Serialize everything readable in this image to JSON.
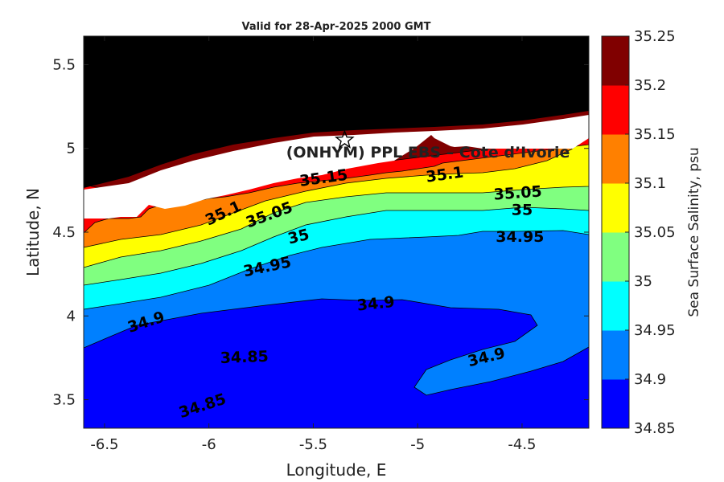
{
  "chart_data": {
    "type": "contour",
    "title": "Valid for 28-Apr-2025 2000 GMT",
    "xlabel": "Longitude, E",
    "ylabel": "Latitude, N",
    "colorbar_label": "Sea Surface Salinity, psu",
    "xlim": [
      -6.6,
      -4.18
    ],
    "ylim": [
      3.33,
      5.67
    ],
    "x_ticks": [
      -6.5,
      -6,
      -5.5,
      -5,
      -4.5
    ],
    "x_tick_labels": [
      "-6.5",
      "-6",
      "-5.5",
      "-5",
      "-4.5"
    ],
    "y_ticks": [
      3.5,
      4,
      4.5,
      5,
      5.5
    ],
    "y_tick_labels": [
      "3.5",
      "4",
      "4.5",
      "5",
      "5.5"
    ],
    "colorbar_levels": [
      34.85,
      34.9,
      34.95,
      35,
      35.05,
      35.1,
      35.15,
      35.2,
      35.25
    ],
    "colorbar_tick_labels": [
      "34.85",
      "34.9",
      "34.95",
      "35",
      "35.05",
      "35.1",
      "35.15",
      "35.2",
      "35.25"
    ],
    "colorbar_colors": [
      "#0000ff",
      "#0080ff",
      "#00ffff",
      "#80ff80",
      "#ffff00",
      "#ff8000",
      "#ff0000",
      "#800000"
    ],
    "land_color": "#000000",
    "contour_labels": [
      {
        "text": "35.15",
        "lon": -5.45,
        "lat": 4.82,
        "rot": -8
      },
      {
        "text": "35.1",
        "lon": -4.87,
        "lat": 4.84,
        "rot": -8
      },
      {
        "text": "35.05",
        "lon": -4.52,
        "lat": 4.73,
        "rot": -4
      },
      {
        "text": "35",
        "lon": -4.5,
        "lat": 4.63,
        "rot": 0
      },
      {
        "text": "35.1",
        "lon": -5.93,
        "lat": 4.61,
        "rot": -25
      },
      {
        "text": "35.05",
        "lon": -5.71,
        "lat": 4.6,
        "rot": -20
      },
      {
        "text": "35",
        "lon": -5.57,
        "lat": 4.47,
        "rot": -14
      },
      {
        "text": "34.95",
        "lon": -4.51,
        "lat": 4.47,
        "rot": 0
      },
      {
        "text": "34.95",
        "lon": -5.72,
        "lat": 4.29,
        "rot": -12
      },
      {
        "text": "34.9",
        "lon": -5.2,
        "lat": 4.07,
        "rot": -6
      },
      {
        "text": "34.9",
        "lon": -6.3,
        "lat": 3.96,
        "rot": -18
      },
      {
        "text": "34.85",
        "lon": -5.83,
        "lat": 3.75,
        "rot": -2
      },
      {
        "text": "34.9",
        "lon": -4.67,
        "lat": 3.75,
        "rot": -14
      },
      {
        "text": "34.85",
        "lon": -6.03,
        "lat": 3.46,
        "rot": -18
      }
    ],
    "annotation": {
      "text": "(ONHYM) PPL EBS  – Cote d’Ivorie",
      "lon": -5.63,
      "lat": 4.98
    },
    "marker": {
      "shape": "star",
      "lon": -5.35,
      "lat": 5.05
    }
  }
}
